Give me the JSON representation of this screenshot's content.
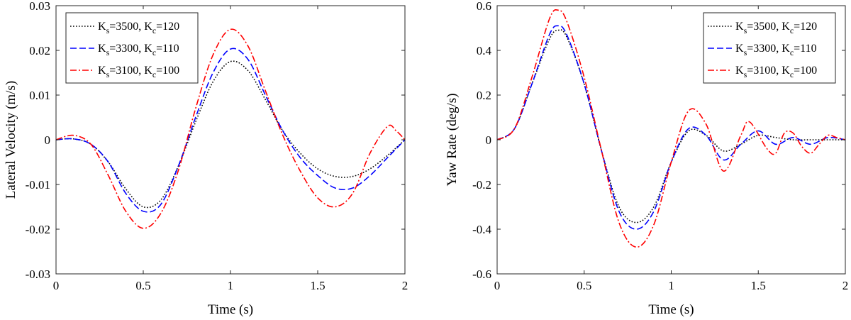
{
  "chart_data": [
    {
      "type": "line",
      "xlabel": "Time (s)",
      "ylabel": "Lateral Velocity (m/s)",
      "xlim": [
        0,
        2
      ],
      "ylim": [
        -0.03,
        0.03
      ],
      "xticks": [
        0,
        0.5,
        1,
        1.5,
        2
      ],
      "xtick_labels": [
        "0",
        "0.5",
        "1",
        "1.5",
        "2"
      ],
      "yticks": [
        -0.03,
        -0.02,
        -0.01,
        0,
        0.01,
        0.02,
        0.03
      ],
      "ytick_labels": [
        "-0.03",
        "-0.02",
        "-0.01",
        "0",
        "0.01",
        "0.02",
        "0.03"
      ],
      "grid": false,
      "legend_position": "top-left",
      "series": [
        {
          "name": "Ks=3500, Kc=120",
          "style": "dotted",
          "color": "#000000",
          "x": [
            0,
            0.1,
            0.2,
            0.3,
            0.4,
            0.5,
            0.6,
            0.7,
            0.8,
            0.9,
            1.0,
            1.1,
            1.2,
            1.3,
            1.4,
            1.5,
            1.6,
            1.7,
            1.8,
            1.9,
            2.0
          ],
          "values": [
            0,
            0.0002,
            -0.001,
            -0.005,
            -0.011,
            -0.015,
            -0.0135,
            -0.006,
            0.004,
            0.013,
            0.0175,
            0.0155,
            0.009,
            0.002,
            -0.003,
            -0.0065,
            -0.0082,
            -0.0082,
            -0.0065,
            -0.0035,
            0
          ]
        },
        {
          "name": "Ks=3300, Kc=110",
          "style": "dashed",
          "color": "#0000ff",
          "x": [
            0,
            0.1,
            0.2,
            0.3,
            0.4,
            0.5,
            0.6,
            0.7,
            0.8,
            0.9,
            1.0,
            1.1,
            1.2,
            1.3,
            1.4,
            1.5,
            1.6,
            1.7,
            1.8,
            1.9,
            2.0
          ],
          "values": [
            0,
            0.0002,
            -0.001,
            -0.005,
            -0.012,
            -0.016,
            -0.0145,
            -0.006,
            0.005,
            0.015,
            0.0203,
            0.018,
            0.01,
            0.002,
            -0.004,
            -0.008,
            -0.0108,
            -0.0108,
            -0.008,
            -0.004,
            0
          ]
        },
        {
          "name": "Ks=3100, Kc=100",
          "style": "dashdot",
          "color": "#ff0000",
          "x": [
            0,
            0.1,
            0.2,
            0.3,
            0.4,
            0.5,
            0.6,
            0.7,
            0.8,
            0.9,
            1.0,
            1.1,
            1.2,
            1.3,
            1.4,
            1.5,
            1.6,
            1.7,
            1.8,
            1.9,
            1.95,
            2.0
          ],
          "values": [
            0,
            0.001,
            -0.001,
            -0.008,
            -0.016,
            -0.0198,
            -0.0165,
            -0.007,
            0.007,
            0.019,
            0.0247,
            0.021,
            0.011,
            0.001,
            -0.007,
            -0.013,
            -0.015,
            -0.012,
            -0.003,
            0.003,
            0.002,
            0
          ]
        }
      ]
    },
    {
      "type": "line",
      "xlabel": "Time (s)",
      "ylabel": "Yaw Rate (deg/s)",
      "xlim": [
        0,
        2
      ],
      "ylim": [
        -0.6,
        0.6
      ],
      "xticks": [
        0,
        0.5,
        1,
        1.5,
        2
      ],
      "xtick_labels": [
        "0",
        "0.5",
        "1",
        "1.5",
        "2"
      ],
      "yticks": [
        -0.6,
        -0.4,
        -0.2,
        0,
        0.2,
        0.4,
        0.6
      ],
      "ytick_labels": [
        "-0.6",
        "-0.4",
        "-0.2",
        "0",
        "0.2",
        "0.4",
        "0.6"
      ],
      "grid": false,
      "legend_position": "top-right",
      "series": [
        {
          "name": "Ks=3500, Kc=120",
          "style": "dotted",
          "color": "#000000",
          "x": [
            0,
            0.1,
            0.2,
            0.3,
            0.35,
            0.4,
            0.5,
            0.6,
            0.7,
            0.8,
            0.9,
            1.0,
            1.1,
            1.2,
            1.3,
            1.4,
            1.5,
            1.6,
            1.7,
            1.8,
            1.9,
            2.0
          ],
          "values": [
            0,
            0.05,
            0.25,
            0.45,
            0.49,
            0.46,
            0.25,
            -0.05,
            -0.3,
            -0.37,
            -0.3,
            -0.1,
            0.04,
            0.02,
            -0.05,
            -0.02,
            0.02,
            0.01,
            0,
            0,
            0,
            0
          ]
        },
        {
          "name": "Ks=3300, Kc=110",
          "style": "dashed",
          "color": "#0000ff",
          "x": [
            0,
            0.1,
            0.2,
            0.3,
            0.35,
            0.4,
            0.5,
            0.6,
            0.7,
            0.8,
            0.9,
            1.0,
            1.1,
            1.2,
            1.3,
            1.4,
            1.5,
            1.6,
            1.7,
            1.8,
            1.9,
            2.0
          ],
          "values": [
            0,
            0.05,
            0.25,
            0.47,
            0.51,
            0.47,
            0.25,
            -0.05,
            -0.32,
            -0.4,
            -0.32,
            -0.1,
            0.05,
            0.02,
            -0.09,
            -0.02,
            0.04,
            -0.02,
            0.01,
            -0.02,
            0.01,
            0
          ]
        },
        {
          "name": "Ks=3100, Kc=100",
          "style": "dashdot",
          "color": "#ff0000",
          "x": [
            0,
            0.1,
            0.2,
            0.3,
            0.35,
            0.4,
            0.5,
            0.6,
            0.7,
            0.8,
            0.9,
            1.0,
            1.1,
            1.2,
            1.3,
            1.4,
            1.45,
            1.55,
            1.6,
            1.65,
            1.7,
            1.75,
            1.8,
            1.85,
            1.9,
            1.95,
            2.0
          ],
          "values": [
            0,
            0.05,
            0.28,
            0.54,
            0.58,
            0.53,
            0.28,
            -0.05,
            -0.37,
            -0.48,
            -0.38,
            -0.1,
            0.13,
            0.07,
            -0.14,
            0.02,
            0.08,
            -0.04,
            -0.06,
            0.03,
            0.03,
            -0.03,
            -0.06,
            -0.02,
            0.02,
            0.01,
            0
          ]
        }
      ]
    }
  ]
}
